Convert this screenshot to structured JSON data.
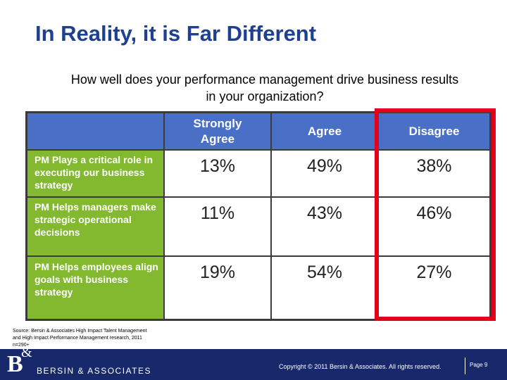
{
  "title": "In Reality, it is Far Different",
  "question": "How well does your performance management drive business results in your organization?",
  "table": {
    "columns": [
      "Strongly Agree",
      "Agree",
      "Disagree"
    ],
    "rows": [
      {
        "label": "PM Plays a critical role in executing our business strategy",
        "values": [
          "13%",
          "49%",
          "38%"
        ]
      },
      {
        "label": "PM Helps managers make strategic operational decisions",
        "values": [
          "11%",
          "43%",
          "46%"
        ]
      },
      {
        "label": "PM Helps employees align goals with business strategy",
        "values": [
          "19%",
          "54%",
          "27%"
        ]
      }
    ]
  },
  "source": "Source: Bersin & Associates High Impact Talent Management and High Impact Performance Management research, 2011 n=290+",
  "footer": {
    "logo_letter": "B",
    "logo_amp": "&",
    "logo_text": "BERSIN & ASSOCIATES",
    "copyright": "Copyright © 2011 Bersin & Associates. All rights reserved.",
    "page": "Page 9"
  },
  "colors": {
    "title": "#1f3f8f",
    "header": "#4a6fc6",
    "row_label": "#82b92e",
    "highlight": "#e4001b",
    "footer": "#17296b"
  }
}
